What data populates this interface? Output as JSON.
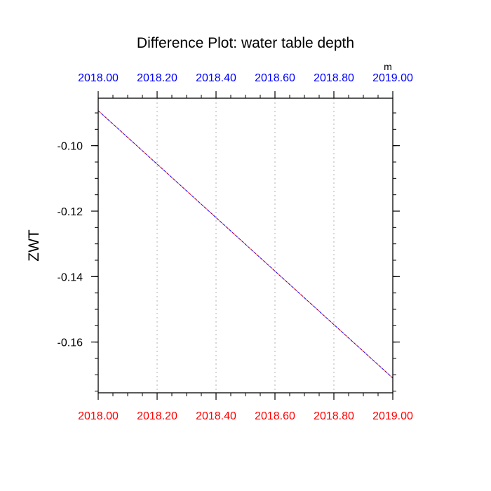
{
  "chart_data": {
    "type": "line",
    "title": "Difference Plot: water table depth",
    "units": "m",
    "ylabel": "ZWT",
    "xlabel": "",
    "xlim": [
      2018.0,
      2019.0
    ],
    "ylim": [
      -0.1755,
      -0.0855
    ],
    "x_ticks": [
      2018.0,
      2018.2,
      2018.4,
      2018.6,
      2018.8,
      2019.0
    ],
    "x_tick_labels": [
      "2018.00",
      "2018.20",
      "2018.40",
      "2018.60",
      "2018.80",
      "2019.00"
    ],
    "y_ticks": [
      -0.1,
      -0.12,
      -0.14,
      -0.16
    ],
    "y_tick_labels": [
      "-0.10",
      "-0.12",
      "-0.14",
      "-0.16"
    ],
    "top_axis_color": "#0000ff",
    "bottom_axis_color": "#ff0000",
    "grid": "vertical dotted at major x ticks",
    "series": [
      {
        "color_a": "#0000ff",
        "color_b": "#ff0000",
        "style": "dashed",
        "x": [
          2018.0,
          2019.0
        ],
        "y": [
          -0.0893,
          -0.171
        ]
      }
    ]
  }
}
